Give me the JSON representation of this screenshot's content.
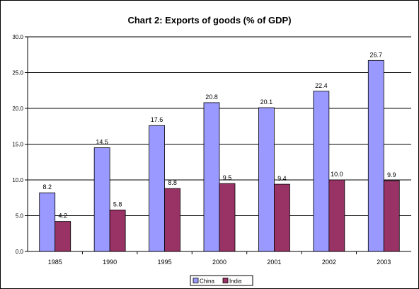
{
  "chart_data": {
    "type": "bar",
    "title": "Chart 2: Exports of goods (% of GDP)",
    "categories": [
      "1985",
      "1990",
      "1995",
      "2000",
      "2001",
      "2002",
      "2003"
    ],
    "series": [
      {
        "name": "China",
        "values": [
          8.2,
          14.5,
          17.6,
          20.8,
          20.1,
          22.4,
          26.7
        ],
        "labels": [
          "8.2",
          "14.5",
          "17.6",
          "20.8",
          "20.1",
          "22.4",
          "26.7"
        ],
        "color": "#9999ff"
      },
      {
        "name": "India",
        "values": [
          4.2,
          5.8,
          8.8,
          9.5,
          9.4,
          10.0,
          9.9
        ],
        "labels": [
          "4.2",
          "5.8",
          "8.8",
          "9.5",
          "9.4",
          "10.0",
          "9.9"
        ],
        "color": "#993366"
      }
    ],
    "yticks": [
      "0.0",
      "5.0",
      "10.0",
      "15.0",
      "20.0",
      "25.0",
      "30.0"
    ],
    "ylim": [
      0,
      30
    ],
    "grid": true,
    "legend_position": "bottom"
  }
}
